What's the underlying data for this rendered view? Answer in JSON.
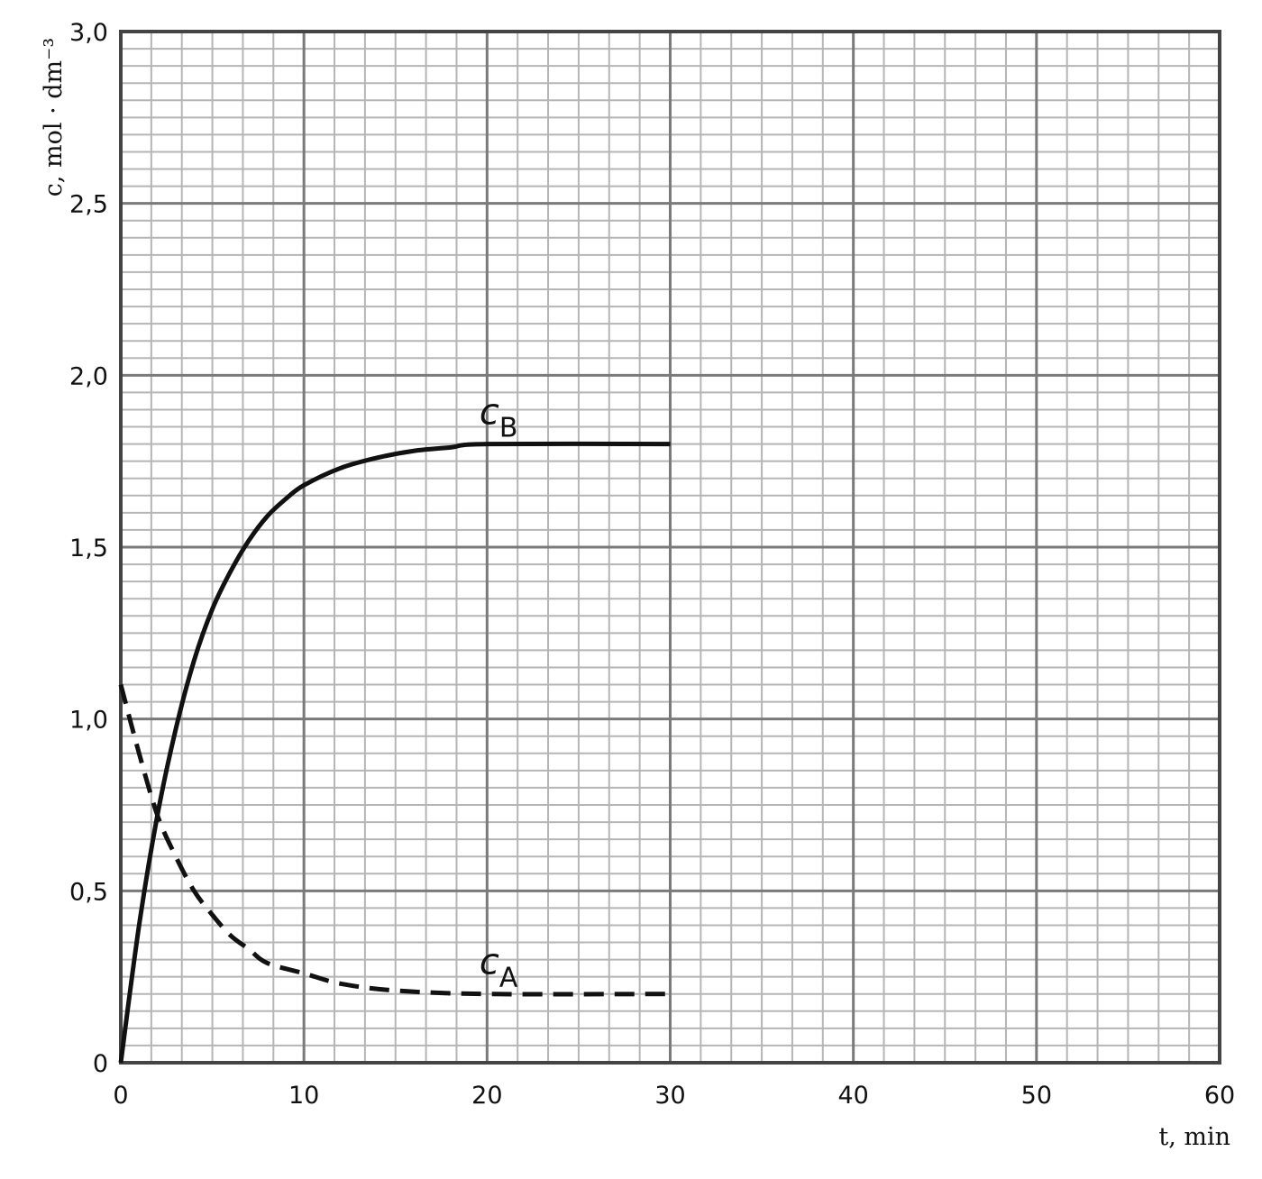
{
  "chart_data": {
    "type": "line",
    "x_label": "t, min",
    "y_label": "c, mol · dm⁻³",
    "xlim": [
      0,
      60
    ],
    "xticks": [
      0,
      10,
      20,
      30,
      40,
      50,
      60
    ],
    "ylim": [
      0,
      3
    ],
    "yticks": [
      0,
      {
        "value": 0.5,
        "label": "0,5"
      },
      {
        "value": 1,
        "label": "1,0"
      },
      {
        "value": 1.5,
        "label": "1,5"
      },
      {
        "value": 2,
        "label": "2,0"
      },
      {
        "value": 2.5,
        "label": "2,5"
      },
      {
        "value": 3,
        "label": "3,0"
      }
    ],
    "grid": true,
    "series": [
      {
        "name": "cB",
        "color": "#111111",
        "dash": false,
        "x": [
          0,
          1,
          2,
          3,
          4,
          5,
          6,
          7,
          8,
          9,
          10,
          12,
          14,
          16,
          18,
          20,
          30
        ],
        "values": [
          0,
          0.4,
          0.72,
          0.97,
          1.17,
          1.32,
          1.43,
          1.52,
          1.59,
          1.64,
          1.68,
          1.73,
          1.76,
          1.78,
          1.79,
          1.8,
          1.8
        ]
      },
      {
        "name": "cA",
        "color": "#111111",
        "dash": true,
        "x": [
          0,
          1,
          2,
          3,
          4,
          5,
          6,
          7,
          8,
          10,
          12,
          15,
          20,
          30
        ],
        "values": [
          1.1,
          0.9,
          0.72,
          0.6,
          0.5,
          0.43,
          0.37,
          0.33,
          0.29,
          0.26,
          0.23,
          0.21,
          0.2,
          0.2
        ]
      }
    ]
  }
}
